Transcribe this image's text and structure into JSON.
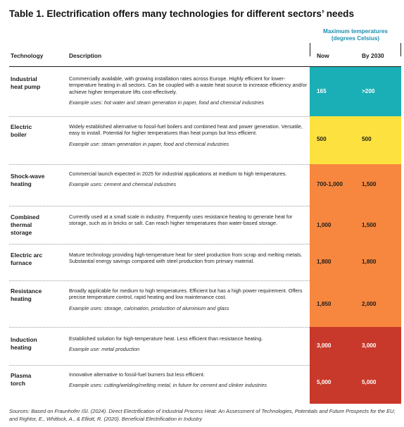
{
  "title": "Table 1. Electrification offers many technologies for different sectors’ needs",
  "max_temp_header": [
    "Maximum temperatures",
    "(degrees Celsius)"
  ],
  "columns": {
    "technology": "Technology",
    "description": "Description",
    "now": "Now",
    "by2030": "By 2030"
  },
  "rows": [
    {
      "technology": [
        "Industrial",
        "heat pump"
      ],
      "description": "Commercially available, with growing installation rates across Europe. Highly efficient for lower-temperature heating in all sectors. Can be coupled with a waste heat source to increase efficiency and/or achieve higher temperature lifts cost-effectively.",
      "example": "Example uses: hot water and steam generation in paper, food and chemical industries",
      "now": "165",
      "by2030": ">200",
      "color": "#1aafb6",
      "text_color": "#ffffff"
    },
    {
      "technology": [
        "Electric",
        "boiler"
      ],
      "description": "Widely established alternative to fossil-fuel boilers and combined heat and power generation. Versatile, easy to install. Potential for higher temperatures than heat pumps but less efficient.",
      "example": "Example use: steam generation in paper, food and chemical industries",
      "now": "500",
      "by2030": "500",
      "color": "#fde23f",
      "text_color": "#1d1d1b"
    },
    {
      "technology": [
        "Shock-wave",
        "heating"
      ],
      "description": "Commercial launch expected in 2025 for industrial applications at medium to high temperatures.",
      "example": "Example uses: cement and chemical industries",
      "now": "700-1,000",
      "by2030": "1,500",
      "color": "#f7873e",
      "text_color": "#1d1d1b"
    },
    {
      "technology": [
        "Combined",
        "thermal",
        "storage"
      ],
      "description": "Currently used at a small scale in industry. Frequently uses resistance heating to generate heat for storage, such as in bricks or salt. Can reach higher temperatures than water-based storage.",
      "example": "",
      "now": "1,000",
      "by2030": "1,500",
      "color": "#f7873e",
      "text_color": "#1d1d1b"
    },
    {
      "technology": [
        "Electric arc",
        "furnace"
      ],
      "description": "Mature technology providing high-temperature heat for steel production from scrap and melting metals. Substantial energy savings compared with steel production from primary material.",
      "example": "",
      "now": "1,800",
      "by2030": "1,800",
      "color": "#f7873e",
      "text_color": "#1d1d1b"
    },
    {
      "technology": [
        "Resistance",
        "heating"
      ],
      "description": "Broadly applicable for medium to high temperatures. Efficient but has a high power requirement. Offers precise temperature control, rapid heating and low maintenance cost.",
      "example": "Example uses: storage, calcination, production of aluminium and glass",
      "now": "1,850",
      "by2030": "2,000",
      "color": "#f7873e",
      "text_color": "#1d1d1b"
    },
    {
      "technology": [
        "Induction",
        "heating"
      ],
      "description": "Established solution for high-temperature heat. Less efficient than resistance heating.",
      "example": "Example use: metal production",
      "now": "3,000",
      "by2030": "3,000",
      "color": "#c8392b",
      "text_color": "#ffffff"
    },
    {
      "technology": [
        "Plasma",
        "torch"
      ],
      "description": "Innovative alternative to fossil-fuel burners but less efficient.",
      "example": "Example uses: cutting/welding/melting metal, in future for cement and clinker industries",
      "now": "5,000",
      "by2030": "5,000",
      "color": "#c8392b",
      "text_color": "#ffffff"
    }
  ],
  "sources": "Sources: Based on Fraunhofer ISI. (2024). Direct Electrification of Industrial Process Heat: An Assessment of Technologies, Potentials and Future Prospects for the EU; and Rightor, E., Whitlock, A., & Elliott, R. (2020). Beneficial Electrification in Industry"
}
